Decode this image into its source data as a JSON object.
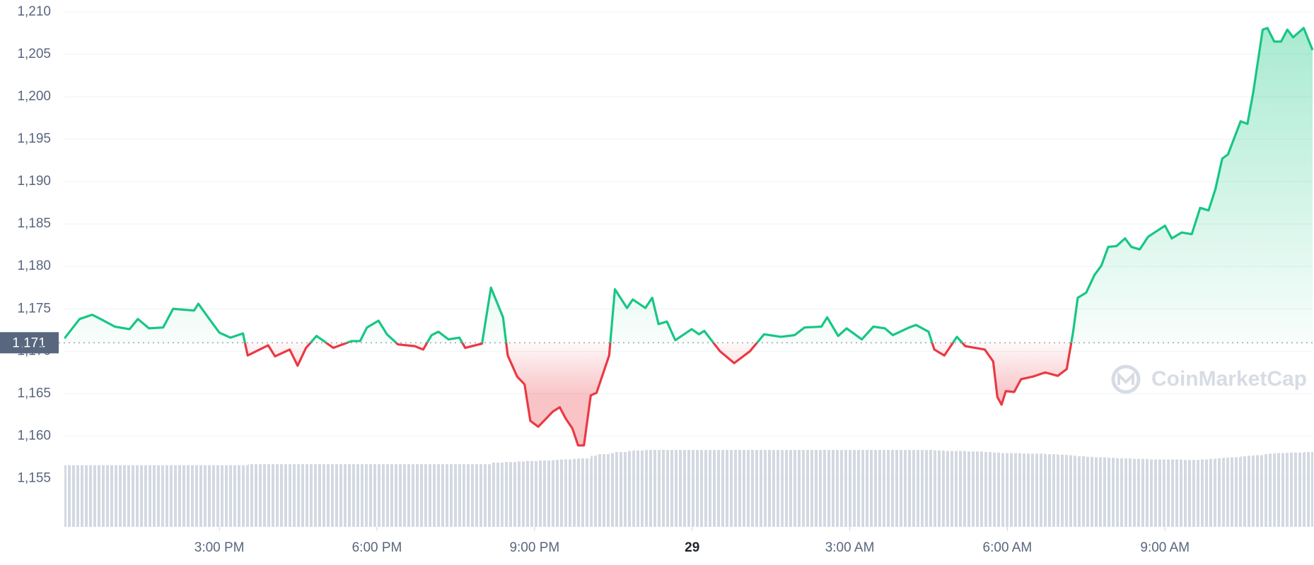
{
  "chart_data": {
    "type": "line",
    "x": [
      12.05,
      12.34,
      12.58,
      12.74,
      13.01,
      13.29,
      13.45,
      13.66,
      13.93,
      14.12,
      14.52,
      14.6,
      14.81,
      15.0,
      15.21,
      15.45,
      15.54,
      15.93,
      16.06,
      16.34,
      16.49,
      16.65,
      16.85,
      17.17,
      17.52,
      17.68,
      17.81,
      18.03,
      18.19,
      18.4,
      18.72,
      18.88,
      19.04,
      19.17,
      19.36,
      19.57,
      19.68,
      20.0,
      20.17,
      20.4,
      20.49,
      20.67,
      20.81,
      20.92,
      21.07,
      21.35,
      21.48,
      21.59,
      21.72,
      21.83,
      21.94,
      22.07,
      22.18,
      22.42,
      22.53,
      22.76,
      22.87,
      23.11,
      23.24,
      23.36,
      23.52,
      23.68,
      23.99,
      24.13,
      24.23,
      24.53,
      24.8,
      25.1,
      25.37,
      25.69,
      25.95,
      26.14,
      26.46,
      26.57,
      26.78,
      26.94,
      27.23,
      27.45,
      27.67,
      27.82,
      28.13,
      28.26,
      28.5,
      28.61,
      28.8,
      29.04,
      29.2,
      29.57,
      29.73,
      29.81,
      29.89,
      29.97,
      30.13,
      30.26,
      30.48,
      30.72,
      30.96,
      31.13,
      31.25,
      31.34,
      31.5,
      31.66,
      31.79,
      31.92,
      32.08,
      32.24,
      32.36,
      32.52,
      32.68,
      33.0,
      33.13,
      33.32,
      33.51,
      33.67,
      33.83,
      33.96,
      34.09,
      34.2,
      34.44,
      34.57,
      34.68,
      34.86,
      34.95,
      35.08,
      35.21,
      35.33,
      35.44,
      35.64,
      35.81
    ],
    "series": [
      {
        "type": "line",
        "color": "#16c784",
        "negative_color": "#ea3943",
        "values": [
          1171.5,
          1173.8,
          1174.3,
          1173.8,
          1172.9,
          1172.6,
          1173.8,
          1172.7,
          1172.8,
          1175.0,
          1174.8,
          1175.6,
          1173.8,
          1172.2,
          1171.6,
          1172.1,
          1169.5,
          1170.7,
          1169.4,
          1170.2,
          1168.3,
          1170.4,
          1171.8,
          1170.4,
          1171.2,
          1171.2,
          1172.8,
          1173.6,
          1172.0,
          1170.8,
          1170.6,
          1170.2,
          1171.9,
          1172.3,
          1171.4,
          1171.6,
          1170.4,
          1170.9,
          1177.5,
          1174.0,
          1169.5,
          1167.0,
          1166.1,
          1161.8,
          1161.1,
          1162.9,
          1163.4,
          1162.1,
          1160.9,
          1158.9,
          1158.9,
          1164.8,
          1165.1,
          1169.5,
          1177.3,
          1175.1,
          1176.1,
          1175.1,
          1176.3,
          1173.2,
          1173.5,
          1171.3,
          1172.6,
          1172.0,
          1172.4,
          1170.0,
          1168.6,
          1170.0,
          1172.0,
          1171.7,
          1171.9,
          1172.8,
          1172.9,
          1174.0,
          1171.8,
          1172.7,
          1171.4,
          1172.9,
          1172.7,
          1171.9,
          1172.8,
          1173.1,
          1172.3,
          1170.2,
          1169.5,
          1171.7,
          1170.6,
          1170.2,
          1168.8,
          1164.6,
          1163.7,
          1165.3,
          1165.2,
          1166.7,
          1167.0,
          1167.5,
          1167.1,
          1167.9,
          1172.2,
          1176.3,
          1176.9,
          1179.0,
          1180.1,
          1182.3,
          1182.4,
          1183.3,
          1182.3,
          1182.0,
          1183.5,
          1184.8,
          1183.3,
          1184.0,
          1183.8,
          1186.9,
          1186.6,
          1189.1,
          1192.7,
          1193.2,
          1197.1,
          1196.8,
          1200.5,
          1207.9,
          1208.1,
          1206.5,
          1206.5,
          1207.9,
          1207.0,
          1208.1,
          1205.5
        ]
      },
      {
        "type": "bar",
        "axis": "y2",
        "color": "#d3d8e1",
        "values": [
          11.7,
          11.7,
          11.7,
          11.7,
          11.7,
          11.7,
          11.7,
          11.7,
          11.7,
          11.7,
          11.7,
          11.7,
          11.7,
          11.7,
          11.7,
          11.7,
          11.9,
          11.9,
          11.9,
          11.9,
          11.9,
          11.9,
          11.9,
          11.9,
          11.9,
          11.9,
          11.9,
          11.9,
          11.9,
          11.9,
          11.9,
          11.9,
          11.9,
          11.9,
          11.9,
          11.9,
          11.9,
          11.9,
          12.2,
          12.3,
          12.3,
          12.4,
          12.5,
          12.5,
          12.6,
          12.7,
          12.8,
          12.8,
          12.9,
          13.0,
          13.0,
          13.5,
          13.8,
          14.0,
          14.2,
          14.4,
          14.5,
          14.6,
          14.6,
          14.6,
          14.6,
          14.6,
          14.6,
          14.6,
          14.6,
          14.6,
          14.6,
          14.6,
          14.6,
          14.6,
          14.6,
          14.6,
          14.6,
          14.6,
          14.6,
          14.6,
          14.6,
          14.6,
          14.6,
          14.6,
          14.6,
          14.6,
          14.6,
          14.5,
          14.4,
          14.4,
          14.3,
          14.2,
          14.1,
          14.1,
          14.0,
          14.0,
          14.0,
          13.9,
          13.9,
          13.8,
          13.7,
          13.6,
          13.5,
          13.4,
          13.3,
          13.2,
          13.2,
          13.1,
          13.0,
          13.0,
          12.9,
          12.9,
          12.8,
          12.8,
          12.8,
          12.7,
          12.7,
          12.8,
          12.9,
          13.0,
          13.1,
          13.2,
          13.4,
          13.5,
          13.6,
          13.8,
          13.9,
          14.0,
          14.0,
          14.1,
          14.1,
          14.2,
          14.2
        ]
      }
    ],
    "xlim": [
      12.05,
      35.81
    ],
    "xticks": [
      {
        "value": 15,
        "label": "3:00 PM"
      },
      {
        "value": 18,
        "label": "6:00 PM"
      },
      {
        "value": 21,
        "label": "9:00 PM"
      },
      {
        "value": 24,
        "label": "29",
        "bold": true
      },
      {
        "value": 27,
        "label": "3:00 AM"
      },
      {
        "value": 30,
        "label": "6:00 AM"
      },
      {
        "value": 33,
        "label": "9:00 AM"
      }
    ],
    "ylim": [
      1149.3,
      1211.4
    ],
    "yticks": [
      {
        "value": 1155,
        "label": "1,155"
      },
      {
        "value": 1160,
        "label": "1,160"
      },
      {
        "value": 1165,
        "label": "1,165"
      },
      {
        "value": 1170,
        "label": "1,170"
      },
      {
        "value": 1175,
        "label": "1,175"
      },
      {
        "value": 1180,
        "label": "1,180"
      },
      {
        "value": 1185,
        "label": "1,185"
      },
      {
        "value": 1190,
        "label": "1,190"
      },
      {
        "value": 1195,
        "label": "1,195"
      },
      {
        "value": 1200,
        "label": "1,200"
      },
      {
        "value": 1205,
        "label": "1,205"
      },
      {
        "value": 1210,
        "label": "1,210"
      }
    ],
    "y2lim": [
      0,
      100
    ],
    "baseline": {
      "value": 1171,
      "label": "1,171"
    },
    "grid": true,
    "watermark": "CoinMarketCap"
  }
}
